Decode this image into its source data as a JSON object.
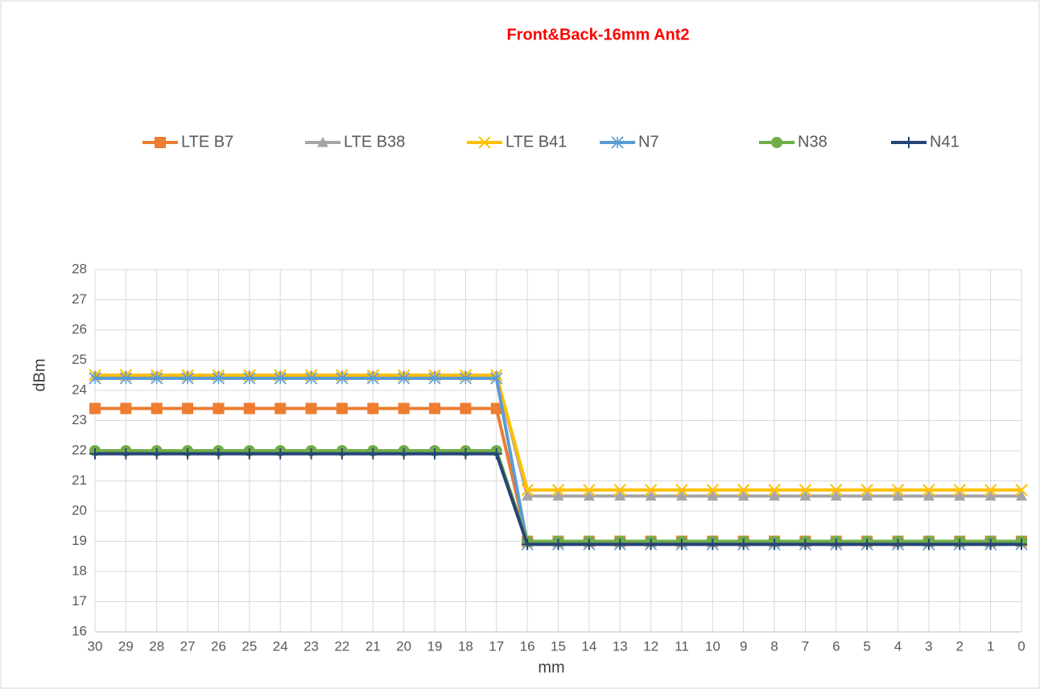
{
  "chart_data": {
    "type": "line",
    "title": "Front&Back-16mm Ant2",
    "x_label": "mm",
    "y_label": "dBm",
    "categories": [
      "30",
      "29",
      "28",
      "27",
      "26",
      "25",
      "24",
      "23",
      "22",
      "21",
      "20",
      "19",
      "18",
      "17",
      "16",
      "15",
      "14",
      "13",
      "12",
      "11",
      "10",
      "9",
      "8",
      "7",
      "6",
      "5",
      "4",
      "3",
      "2",
      "1",
      "0"
    ],
    "ylim": [
      16,
      28
    ],
    "yticks": [
      16,
      17,
      18,
      19,
      20,
      21,
      22,
      23,
      24,
      25,
      26,
      27,
      28
    ],
    "grid": true,
    "legend": "top",
    "series": [
      {
        "name": "LTE B7",
        "color": "#ED7D31",
        "marker": "square",
        "values": [
          23.4,
          23.4,
          23.4,
          23.4,
          23.4,
          23.4,
          23.4,
          23.4,
          23.4,
          23.4,
          23.4,
          23.4,
          23.4,
          23.4,
          19.0,
          19.0,
          19.0,
          19.0,
          19.0,
          19.0,
          19.0,
          19.0,
          19.0,
          19.0,
          19.0,
          19.0,
          19.0,
          19.0,
          19.0,
          19.0,
          19.0
        ]
      },
      {
        "name": "LTE B38",
        "color": "#A5A5A5",
        "marker": "triangle",
        "values": [
          24.5,
          24.5,
          24.5,
          24.5,
          24.5,
          24.5,
          24.5,
          24.5,
          24.5,
          24.5,
          24.5,
          24.5,
          24.5,
          24.5,
          20.5,
          20.5,
          20.5,
          20.5,
          20.5,
          20.5,
          20.5,
          20.5,
          20.5,
          20.5,
          20.5,
          20.5,
          20.5,
          20.5,
          20.5,
          20.5,
          20.5
        ]
      },
      {
        "name": "LTE B41",
        "color": "#FFC000",
        "marker": "x",
        "values": [
          24.5,
          24.5,
          24.5,
          24.5,
          24.5,
          24.5,
          24.5,
          24.5,
          24.5,
          24.5,
          24.5,
          24.5,
          24.5,
          24.5,
          20.7,
          20.7,
          20.7,
          20.7,
          20.7,
          20.7,
          20.7,
          20.7,
          20.7,
          20.7,
          20.7,
          20.7,
          20.7,
          20.7,
          20.7,
          20.7,
          20.7
        ]
      },
      {
        "name": "N7",
        "color": "#5B9BD5",
        "marker": "asterisk",
        "values": [
          24.4,
          24.4,
          24.4,
          24.4,
          24.4,
          24.4,
          24.4,
          24.4,
          24.4,
          24.4,
          24.4,
          24.4,
          24.4,
          24.4,
          18.9,
          18.9,
          18.9,
          18.9,
          18.9,
          18.9,
          18.9,
          18.9,
          18.9,
          18.9,
          18.9,
          18.9,
          18.9,
          18.9,
          18.9,
          18.9,
          18.9
        ]
      },
      {
        "name": "N38",
        "color": "#70AD47",
        "marker": "circle",
        "values": [
          22.0,
          22.0,
          22.0,
          22.0,
          22.0,
          22.0,
          22.0,
          22.0,
          22.0,
          22.0,
          22.0,
          22.0,
          22.0,
          22.0,
          19.0,
          19.0,
          19.0,
          19.0,
          19.0,
          19.0,
          19.0,
          19.0,
          19.0,
          19.0,
          19.0,
          19.0,
          19.0,
          19.0,
          19.0,
          19.0,
          19.0
        ]
      },
      {
        "name": "N41",
        "color": "#264478",
        "marker": "plus",
        "values": [
          21.9,
          21.9,
          21.9,
          21.9,
          21.9,
          21.9,
          21.9,
          21.9,
          21.9,
          21.9,
          21.9,
          21.9,
          21.9,
          21.9,
          18.9,
          18.9,
          18.9,
          18.9,
          18.9,
          18.9,
          18.9,
          18.9,
          18.9,
          18.9,
          18.9,
          18.9,
          18.9,
          18.9,
          18.9,
          18.9,
          18.9
        ]
      }
    ]
  }
}
